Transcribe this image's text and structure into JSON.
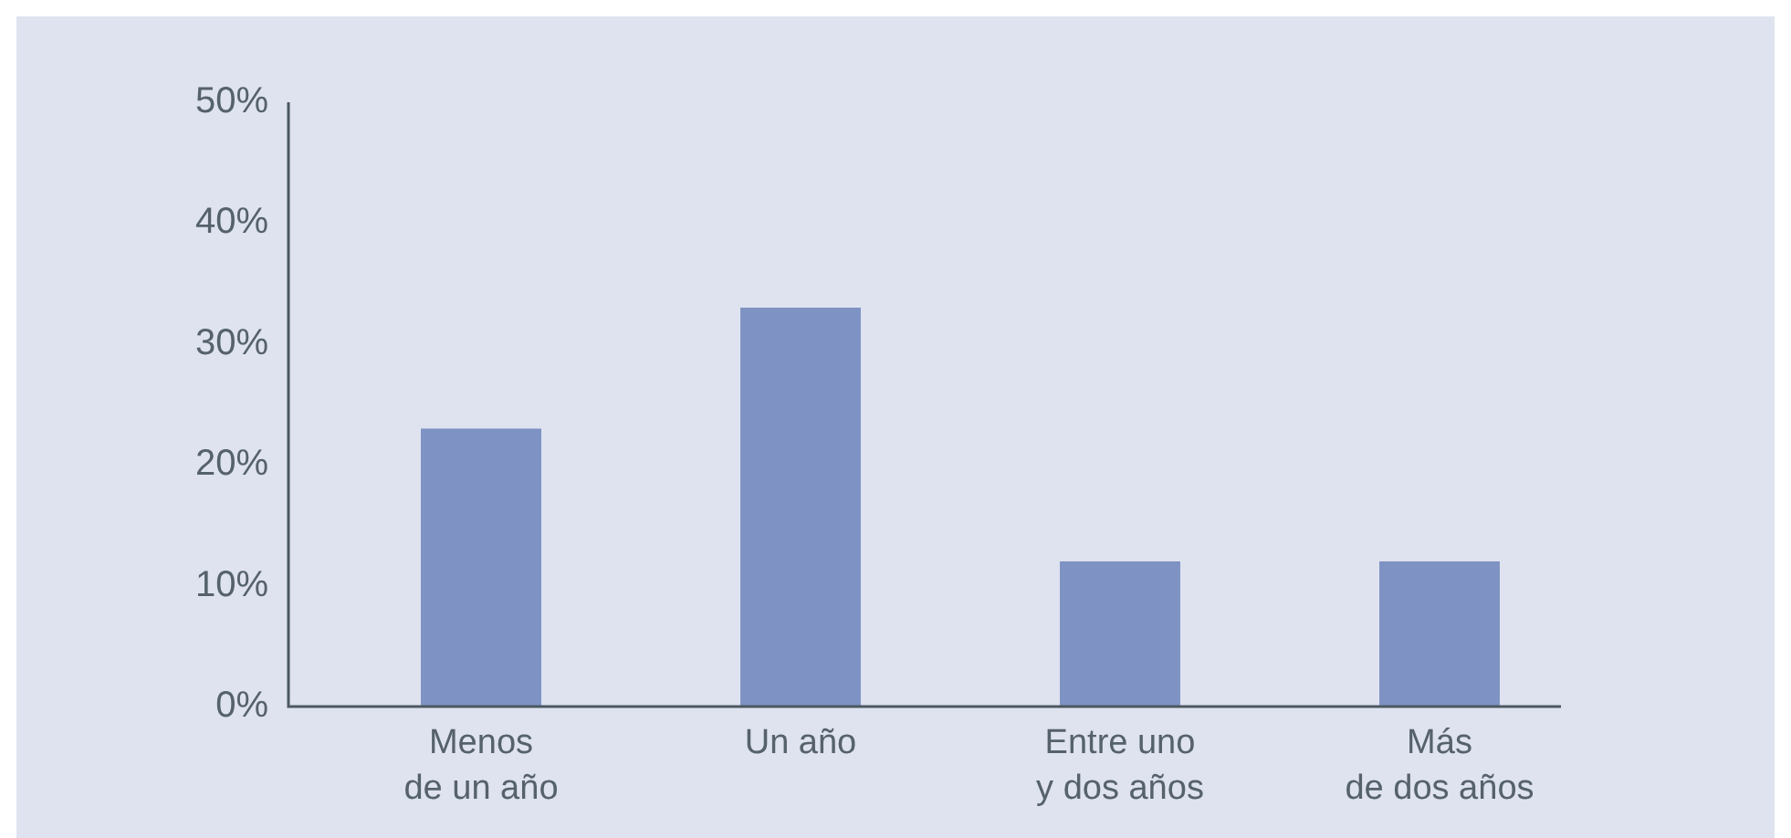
{
  "chart_data": {
    "type": "bar",
    "categories": [
      "Menos\nde un año",
      "Un año",
      "Entre uno\ny dos años",
      "Más\nde dos años"
    ],
    "values": [
      23,
      33,
      12,
      12
    ],
    "color": "#7f92c4",
    "ylim": [
      0,
      50
    ],
    "yticks": [
      {
        "value": 0,
        "label": "0%"
      },
      {
        "value": 10,
        "label": "10%"
      },
      {
        "value": 20,
        "label": "20%"
      },
      {
        "value": 30,
        "label": "30%"
      },
      {
        "value": 40,
        "label": "40%"
      },
      {
        "value": 50,
        "label": "50%"
      }
    ],
    "grid": false,
    "legend": false
  }
}
